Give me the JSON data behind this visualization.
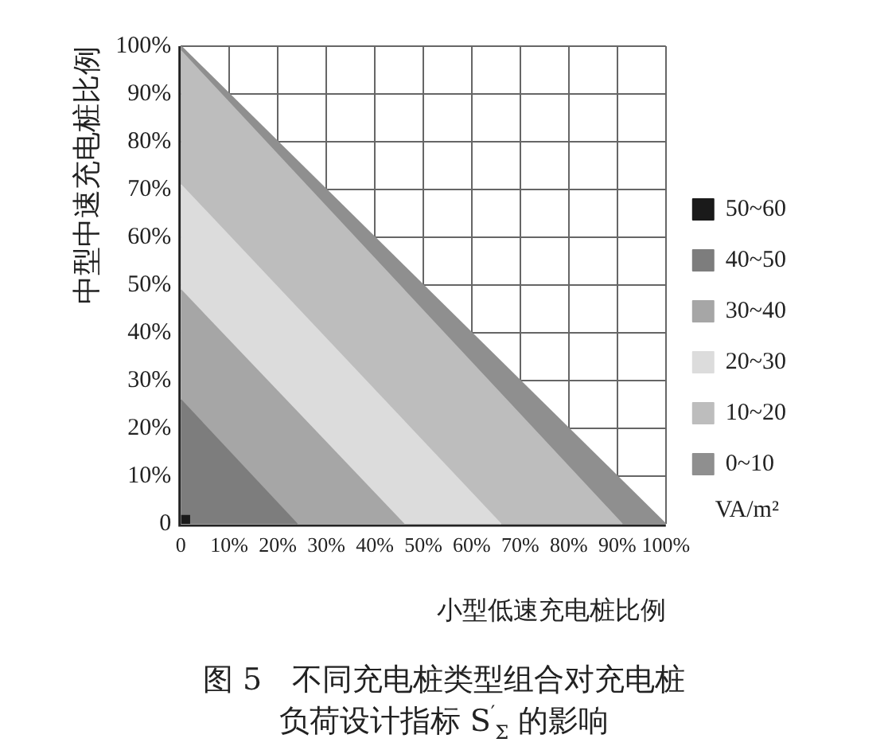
{
  "chart_data": {
    "type": "area",
    "title": "图 5　不同充电桩类型组合对充电桩负荷设计指标 S$^{′}$$_{Σ}$ 的影响",
    "xlabel": "小型低速充电桩比例",
    "ylabel": "中型中速充电桩比例",
    "legend_title": "VA/m²",
    "series": [
      {
        "name": "50~60",
        "type": "scatter",
        "marker": "square",
        "color": "#1a1a1a",
        "x": [
          1
        ],
        "values": [
          1
        ]
      },
      {
        "name": "40~50",
        "color": "#7d7d7d",
        "x": [
          0,
          24
        ],
        "values": [
          26,
          0
        ]
      },
      {
        "name": "30~40",
        "color": "#a6a6a6",
        "x": [
          0,
          46
        ],
        "values": [
          49,
          0
        ]
      },
      {
        "name": "20~30",
        "color": "#dcdcdc",
        "x": [
          0,
          66
        ],
        "values": [
          71,
          0
        ]
      },
      {
        "name": "10~20",
        "color": "#bdbdbd",
        "x": [
          0,
          91
        ],
        "values": [
          99,
          0
        ]
      },
      {
        "name": "0~10",
        "color": "#8f8f8f",
        "x": [
          0,
          100
        ],
        "values": [
          100,
          0
        ]
      }
    ],
    "xlim": [
      0,
      100
    ],
    "ylim": [
      0,
      100
    ],
    "xticks": [
      0,
      {
        "value": 10,
        "label": "10%"
      },
      {
        "value": 20,
        "label": "20%"
      },
      {
        "value": 30,
        "label": "30%"
      },
      {
        "value": 40,
        "label": "40%"
      },
      {
        "value": 50,
        "label": "50%"
      },
      {
        "value": 60,
        "label": "60%"
      },
      {
        "value": 70,
        "label": "70%"
      },
      {
        "value": 80,
        "label": "80%"
      },
      {
        "value": 90,
        "label": "90%"
      },
      {
        "value": 100,
        "label": "100%"
      }
    ],
    "yticks": [
      0,
      {
        "value": 10,
        "label": "10%"
      },
      {
        "value": 20,
        "label": "20%"
      },
      {
        "value": 30,
        "label": "30%"
      },
      {
        "value": 40,
        "label": "40%"
      },
      {
        "value": 50,
        "label": "50%"
      },
      {
        "value": 60,
        "label": "60%"
      },
      {
        "value": 70,
        "label": "70%"
      },
      {
        "value": 80,
        "label": "80%"
      },
      {
        "value": 90,
        "label": "90%"
      },
      {
        "value": 100,
        "label": "100%"
      }
    ],
    "grid": true,
    "legend": "right"
  }
}
